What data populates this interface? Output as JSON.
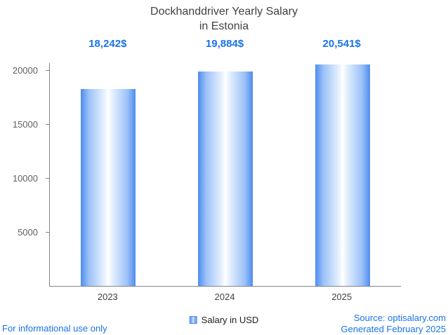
{
  "title": {
    "line1": "Dockhanddriver Yearly Salary",
    "line2": "in Estonia"
  },
  "chart_data": {
    "type": "bar",
    "title": "Dockhanddriver Yearly Salary in Estonia",
    "categories": [
      "2023",
      "2024",
      "2025"
    ],
    "values": [
      18242,
      19884,
      20541
    ],
    "value_labels": [
      "18,242$",
      "19,884$",
      "20,541$"
    ],
    "xlabel": "",
    "ylabel": "",
    "ylim": [
      0,
      20650
    ],
    "yticks": [
      5000,
      10000,
      15000,
      20000
    ],
    "grid": false,
    "legend": "Salary in USD",
    "legend_position": "bottom",
    "bar_gradient_edge": "#4e8cf0",
    "bar_gradient_center": "#ffffff",
    "value_label_color": "#1a73e8",
    "axis_color": "#80868b"
  },
  "legend": {
    "label": "Salary in USD"
  },
  "footer": {
    "left": "For informational use only",
    "source": "Source: optisalary.com",
    "generated": "Generated February 2025"
  }
}
